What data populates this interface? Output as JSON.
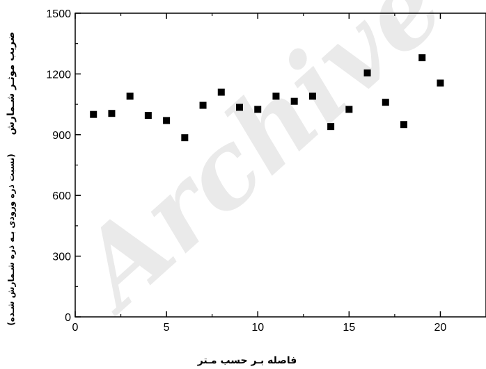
{
  "chart_data": {
    "type": "scatter",
    "title": "",
    "xlabel": "فاصله بـر حسب مـتر",
    "ylabel": "ضریب موثـر شـمارش",
    "ylabel_note": "(نسبت ذره ورودی بـه ذره شـمارش شـده)",
    "xlim": [
      0,
      22.5
    ],
    "ylim": [
      0,
      1500
    ],
    "x_ticks": [
      "0",
      "5",
      "10",
      "15",
      "20"
    ],
    "y_ticks": [
      "0",
      "300",
      "600",
      "900",
      "1200",
      "1500"
    ],
    "grid": false,
    "legend": "none",
    "marker": "square",
    "marker_color": "#000000",
    "series": [
      {
        "x": [
          1,
          2,
          3,
          4,
          5,
          6,
          7,
          8,
          9,
          10,
          11,
          12,
          13,
          14,
          15,
          16,
          17,
          18,
          19,
          20
        ],
        "y": [
          1000,
          1005,
          1090,
          995,
          970,
          885,
          1045,
          1110,
          1035,
          1025,
          1090,
          1065,
          1090,
          940,
          1025,
          1205,
          1060,
          950,
          1280,
          1155
        ]
      }
    ],
    "watermark": "Archive"
  }
}
